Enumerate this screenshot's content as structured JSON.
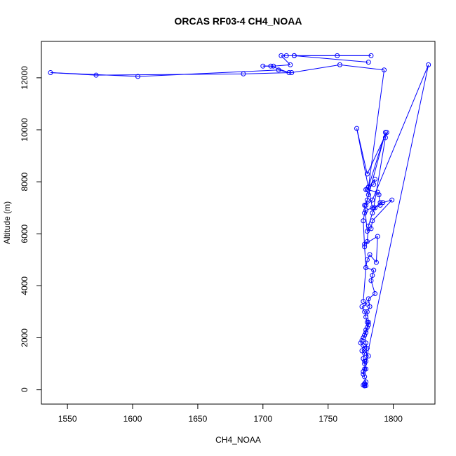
{
  "chart_data": {
    "type": "line",
    "title": "ORCAS RF03-4 CH4_NOAA",
    "xlabel": "CH4_NOAA",
    "ylabel": "Altitude (m)",
    "xlim": [
      1530,
      1832
    ],
    "ylim": [
      -550,
      13400
    ],
    "xticks": [
      1550,
      1600,
      1650,
      1700,
      1750,
      1800
    ],
    "yticks": [
      0,
      2000,
      4000,
      6000,
      8000,
      10000,
      12000
    ],
    "grid": false,
    "legend": "none",
    "series_color": "#0000ff",
    "series": [
      {
        "x": [
          1778,
          1777,
          1779,
          1778,
          1778,
          1779,
          1778,
          1777,
          1779,
          1778,
          1778,
          1777,
          1778,
          1776,
          1778,
          1777,
          1775,
          1776,
          1777,
          1778,
          1779,
          1780,
          1781,
          1780,
          1782,
          1781,
          1786,
          1783,
          1784,
          1785,
          1779,
          1780,
          1782,
          1787,
          1788,
          1778,
          1780,
          1781,
          1784,
          1786,
          1790,
          1792,
          1799,
          1784,
          1783,
          1780,
          1778,
          1780,
          1781,
          1779,
          1785,
          1786,
          1781,
          1780,
          1788,
          1789,
          1790,
          1785,
          1794,
          1795,
          1780,
          1772,
          1784,
          1779,
          1778,
          1777,
          1778,
          1779,
          1777,
          1780,
          1776,
          1778,
          1779,
          1780,
          1781,
          1779,
          1778,
          1779,
          1780,
          1778,
          1781,
          1779,
          1778,
          1777,
          1827,
          1784,
          1779,
          1794,
          1781,
          1793,
          1759,
          1722,
          1685,
          1572,
          1537,
          1604,
          1712,
          1720,
          1706,
          1700,
          1708,
          1721,
          1714,
          1718,
          1724,
          1757,
          1783,
          1724,
          1781
        ],
        "y": [
          150,
          180,
          160,
          200,
          240,
          300,
          500,
          700,
          800,
          1000,
          1100,
          1200,
          1400,
          1500,
          1600,
          1700,
          1800,
          1900,
          2000,
          2100,
          2200,
          2400,
          2600,
          3000,
          3200,
          3500,
          3700,
          4200,
          4400,
          4600,
          4700,
          5000,
          5200,
          4900,
          5900,
          5600,
          5700,
          6300,
          6800,
          7000,
          7200,
          7200,
          7300,
          6500,
          6200,
          6100,
          7100,
          7300,
          7500,
          7700,
          7900,
          8100,
          7800,
          7700,
          7600,
          7500,
          7100,
          7000,
          9700,
          9900,
          8300,
          10050,
          7000,
          6900,
          6800,
          6500,
          5500,
          4700,
          3400,
          3300,
          3200,
          3000,
          2800,
          2600,
          2500,
          2300,
          2100,
          1800,
          1600,
          1500,
          1300,
          1100,
          800,
          600,
          12500,
          7300,
          7100,
          9900,
          7800,
          12300,
          12500,
          12200,
          12150,
          12100,
          12200,
          12050,
          12300,
          12200,
          12450,
          12450,
          12450,
          12500,
          12850,
          12850,
          12850,
          12850,
          12850,
          12850,
          12600
        ]
      }
    ]
  }
}
